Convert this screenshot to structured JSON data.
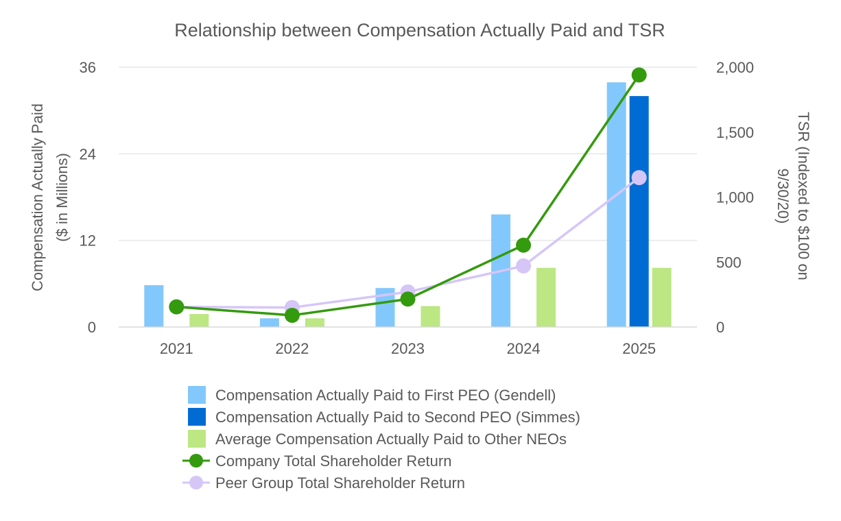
{
  "chart_data": {
    "type": "bar",
    "title": "Relationship between Compensation Actually Paid and TSR",
    "categories": [
      "2021",
      "2022",
      "2023",
      "2024",
      "2025"
    ],
    "left_axis": {
      "label_line1": "Compensation Actually Paid",
      "label_line2": "($ in Millions)",
      "ylim": [
        0,
        36
      ],
      "ticks": [
        0,
        12,
        24,
        36
      ],
      "tick_labels": [
        "0",
        "12",
        "24",
        "36"
      ]
    },
    "right_axis": {
      "label_line1": "TSR (Indexed to $100 on",
      "label_line2": "9/30/20)",
      "ylim": [
        0,
        2000
      ],
      "ticks": [
        0,
        500,
        1000,
        1500,
        2000
      ],
      "tick_labels": [
        "0",
        "500",
        "1,000",
        "1,500",
        "2,000"
      ]
    },
    "bar_series": [
      {
        "name": "Compensation Actually Paid to First PEO (Gendell)",
        "color": "#83C8FC",
        "axis": "left",
        "values": [
          5.8,
          1.2,
          5.4,
          15.6,
          33.9
        ]
      },
      {
        "name": "Compensation Actually Paid to Second PEO (Simmes)",
        "color": "#006CD3",
        "axis": "left",
        "values": [
          null,
          null,
          null,
          null,
          32.0
        ]
      },
      {
        "name": "Average Compensation Actually Paid to Other NEOs",
        "color": "#BCE783",
        "axis": "left",
        "values": [
          1.8,
          1.2,
          2.9,
          8.2,
          8.2
        ]
      }
    ],
    "line_series": [
      {
        "name": "Company Total Shareholder Return",
        "color": "#349A0E",
        "axis": "right",
        "values": [
          155,
          90,
          215,
          630,
          1940
        ]
      },
      {
        "name": "Peer Group Total Shareholder Return",
        "color": "#D5C6F7",
        "axis": "right",
        "values": [
          155,
          150,
          270,
          470,
          1150
        ]
      }
    ],
    "legend_position": "bottom",
    "grid": true
  }
}
